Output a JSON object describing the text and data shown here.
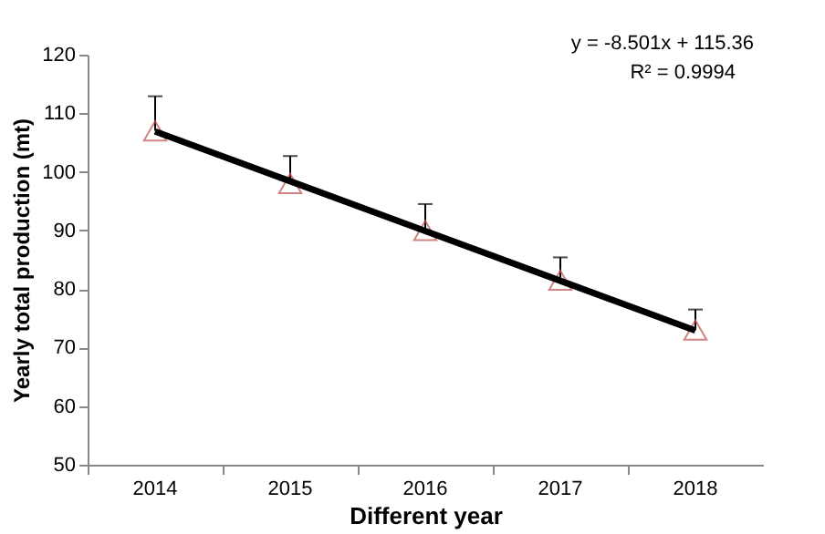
{
  "chart_data": {
    "type": "scatter",
    "xlabel": "Different year",
    "ylabel": "Yearly total production (mt)",
    "categories": [
      "2014",
      "2015",
      "2016",
      "2017",
      "2018"
    ],
    "series": [
      {
        "color": "#c0504d",
        "marker": "triangle",
        "values": [
          107,
          98,
          90,
          81.5,
          73
        ],
        "errors": [
          [
            107,
            112.9
          ],
          [
            98,
            102.7
          ],
          [
            90,
            94.5
          ],
          [
            81.5,
            85.4
          ],
          [
            73,
            76.5
          ]
        ]
      },
      {
        "type": "line",
        "color": "#000000",
        "marker": "none",
        "line_style": "solid",
        "values": [
          106.9,
          98.4,
          89.9,
          81.4,
          72.9
        ]
      }
    ],
    "ylim": [
      50,
      120
    ],
    "yticks": [
      50,
      60,
      70,
      80,
      90,
      100,
      110,
      120
    ],
    "annotations": [
      "y = -8.501x + 115.36",
      "R² = 0.9994"
    ]
  }
}
